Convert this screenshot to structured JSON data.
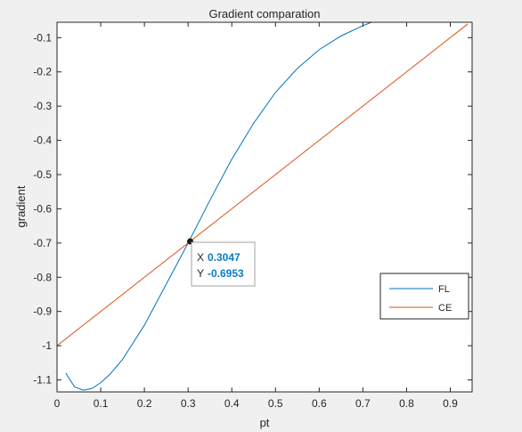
{
  "chart_data": {
    "type": "line",
    "title": "Gradient comparation",
    "xlabel": "pt",
    "ylabel": "gradient",
    "xlim": [
      0,
      0.95
    ],
    "ylim": [
      -1.135,
      -0.055
    ],
    "xticks": [
      0,
      0.1,
      0.2,
      0.3,
      0.4,
      0.5,
      0.6,
      0.7,
      0.8,
      0.9
    ],
    "xtick_labels": [
      "0",
      "0.1",
      "0.2",
      "0.3",
      "0.4",
      "0.5",
      "0.6",
      "0.7",
      "0.8",
      "0.9"
    ],
    "yticks": [
      -0.1,
      -0.2,
      -0.3,
      -0.4,
      -0.5,
      -0.6,
      -0.7,
      -0.8,
      -0.9,
      -1,
      -1.1
    ],
    "ytick_labels": [
      "-0.1",
      "-0.2",
      "-0.3",
      "-0.4",
      "-0.5",
      "-0.6",
      "-0.7",
      "-0.8",
      "-0.9",
      "-1",
      "-1.1"
    ],
    "grid": false,
    "legend_location": "right",
    "series": [
      {
        "name": "FL",
        "color": "#0072bd",
        "x": [
          0.02,
          0.04,
          0.06,
          0.08,
          0.1,
          0.12,
          0.15,
          0.2,
          0.25,
          0.3,
          0.35,
          0.4,
          0.45,
          0.5,
          0.55,
          0.6,
          0.65,
          0.7,
          0.72
        ],
        "y": [
          -1.08,
          -1.12,
          -1.13,
          -1.125,
          -1.108,
          -1.085,
          -1.04,
          -0.94,
          -0.82,
          -0.7,
          -0.575,
          -0.455,
          -0.35,
          -0.26,
          -0.19,
          -0.135,
          -0.095,
          -0.065,
          -0.055
        ]
      },
      {
        "name": "CE",
        "color": "#d95319",
        "x": [
          0,
          0.94
        ],
        "y": [
          -1.0,
          -0.06
        ]
      }
    ],
    "datatip": {
      "point": {
        "x": 0.3047,
        "y": -0.6953
      },
      "x_label": "X",
      "x_value": "0.3047",
      "y_label": "Y",
      "y_value": "-0.6953"
    }
  }
}
